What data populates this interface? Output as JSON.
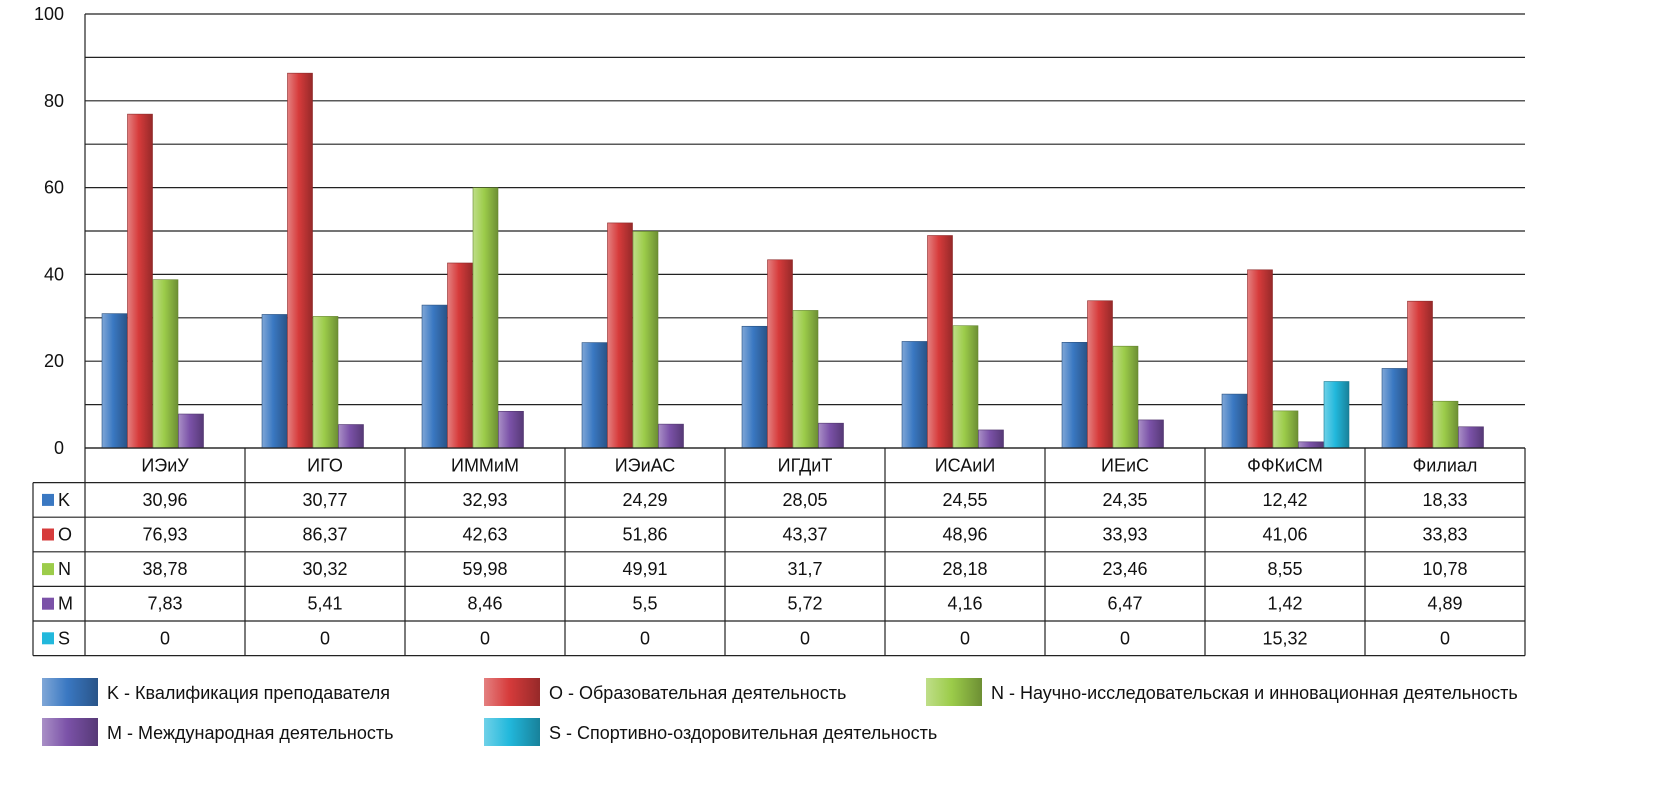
{
  "chart_data": {
    "type": "bar",
    "categories": [
      "ИЭиУ",
      "ИГО",
      "ИММиМ",
      "ИЭиАС",
      "ИГДиТ",
      "ИСАиИ",
      "ИЕиС",
      "ФФКиСМ",
      "Филиал"
    ],
    "ylim": [
      0,
      100
    ],
    "yticks": [
      0,
      20,
      40,
      60,
      80,
      100
    ],
    "ytick_labels": [
      "0",
      "20",
      "40",
      "60",
      "80",
      "100"
    ],
    "grid": true,
    "series": [
      {
        "name": "K",
        "color": "#3a78c2",
        "values": [
          30.96,
          30.77,
          32.93,
          24.29,
          28.05,
          24.55,
          24.35,
          12.42,
          18.33
        ],
        "labels": [
          "30,96",
          "30,77",
          "32,93",
          "24,29",
          "28,05",
          "24,55",
          "24,35",
          "12,42",
          "18,33"
        ]
      },
      {
        "name": "O",
        "color": "#d63b3b",
        "values": [
          76.93,
          86.37,
          42.63,
          51.86,
          43.37,
          48.96,
          33.93,
          41.06,
          33.83
        ],
        "labels": [
          "76,93",
          "86,37",
          "42,63",
          "51,86",
          "43,37",
          "48,96",
          "33,93",
          "41,06",
          "33,83"
        ]
      },
      {
        "name": "N",
        "color": "#9ccc4a",
        "values": [
          38.78,
          30.32,
          59.98,
          49.91,
          31.7,
          28.18,
          23.46,
          8.55,
          10.78
        ],
        "labels": [
          "38,78",
          "30,32",
          "59,98",
          "49,91",
          "31,7",
          "28,18",
          "23,46",
          "8,55",
          "10,78"
        ]
      },
      {
        "name": "M",
        "color": "#7b52a8",
        "values": [
          7.83,
          5.41,
          8.46,
          5.5,
          5.72,
          4.16,
          6.47,
          1.42,
          4.89
        ],
        "labels": [
          "7,83",
          "5,41",
          "8,46",
          "5,5",
          "5,72",
          "4,16",
          "6,47",
          "1,42",
          "4,89"
        ]
      },
      {
        "name": "S",
        "color": "#22b8dc",
        "values": [
          0,
          0,
          0,
          0,
          0,
          0,
          0,
          15.32,
          0
        ],
        "labels": [
          "0",
          "0",
          "0",
          "0",
          "0",
          "0",
          "0",
          "15,32",
          "0"
        ]
      }
    ],
    "legend": {
      "placement": "bottom",
      "entries": [
        {
          "label": "K - Квалификация преподавателя",
          "color": "#3a78c2"
        },
        {
          "label": "O - Образовательная деятельность",
          "color": "#d63b3b"
        },
        {
          "label": "N - Научно-исследовательская и инновационная деятельность",
          "color": "#9ccc4a"
        },
        {
          "label": "M - Международная деятельность",
          "color": "#7b52a8"
        },
        {
          "label": "S - Спортивно-оздоровительная деятельность",
          "color": "#22b8dc"
        }
      ]
    }
  }
}
